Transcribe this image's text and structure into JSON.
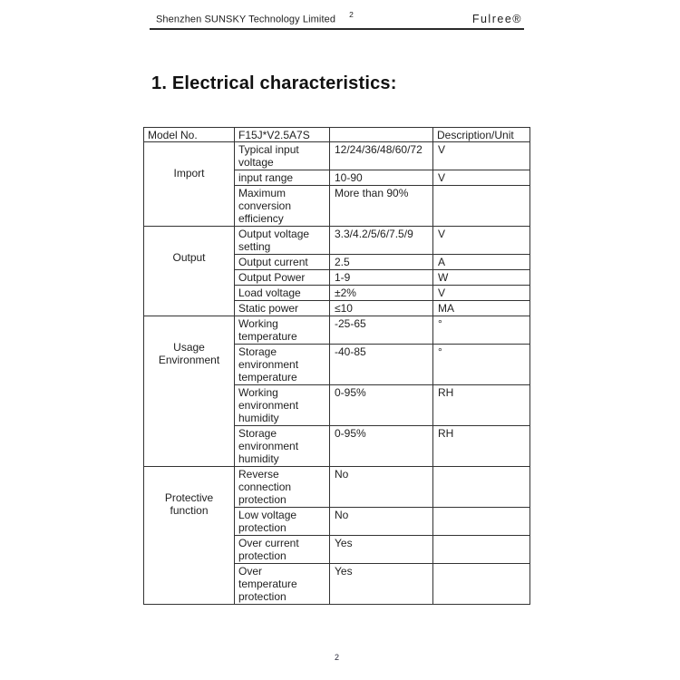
{
  "page_header": {
    "company": "Shenzhen SUNSKY Technology Limited",
    "footnote": "2",
    "brand": "Fulree®"
  },
  "title": "1. Electrical characteristics:",
  "table": {
    "header": {
      "col1": "Model No.",
      "col2": "F15J*V2.5A7S",
      "col3": "",
      "col4": "Description/Unit"
    },
    "groups": [
      {
        "name": "Import",
        "rows": [
          {
            "property": "Typical input voltage",
            "value": "12/24/36/48/60/72",
            "unit": "V"
          },
          {
            "property": "input range",
            "value": "10-90",
            "unit": "V"
          },
          {
            "property": "Maximum conversion efficiency",
            "value": "More than 90%",
            "unit": ""
          }
        ]
      },
      {
        "name": "Output",
        "rows": [
          {
            "property": "Output voltage setting",
            "value": "3.3/4.2/5/6/7.5/9",
            "unit": "V"
          },
          {
            "property": "Output current",
            "value": "2.5",
            "unit": "A"
          },
          {
            "property": "Output Power",
            "value": "1-9",
            "unit": "W"
          },
          {
            "property": "Load voltage",
            "value": "±2%",
            "unit": "V"
          },
          {
            "property": "Static power",
            "value": "≤10",
            "unit": "MA"
          }
        ]
      },
      {
        "name": "Usage Environment",
        "rows": [
          {
            "property": "Working temperature",
            "value": "-25-65",
            "unit": "°"
          },
          {
            "property": "Storage environment temperature",
            "value": "-40-85",
            "unit": "°"
          },
          {
            "property": "Working environment humidity",
            "value": "0-95%",
            "unit": "RH"
          },
          {
            "property": "Storage environment humidity",
            "value": "0-95%",
            "unit": "RH"
          }
        ]
      },
      {
        "name": "Protective function",
        "rows": [
          {
            "property": "Reverse connection protection",
            "value": "No",
            "unit": ""
          },
          {
            "property": "Low voltage protection",
            "value": "No",
            "unit": ""
          },
          {
            "property": "Over current protection",
            "value": "Yes",
            "unit": ""
          },
          {
            "property": "Over temperature protection",
            "value": "Yes",
            "unit": ""
          }
        ]
      }
    ]
  },
  "footer": {
    "page_number": "2"
  }
}
